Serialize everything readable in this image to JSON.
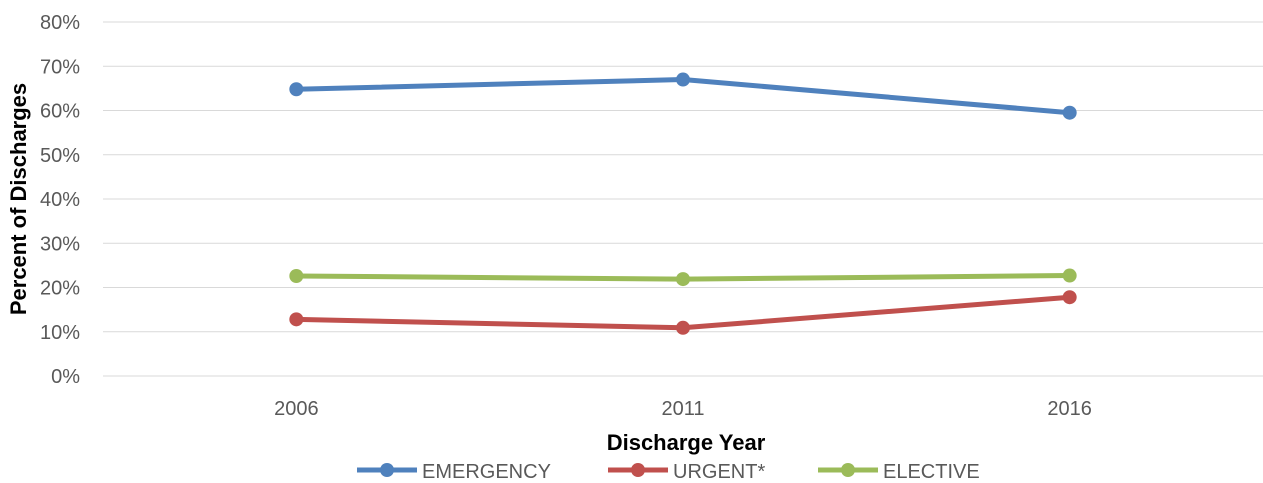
{
  "chart_data": {
    "type": "line",
    "categories": [
      "2006",
      "2011",
      "2016"
    ],
    "series": [
      {
        "name": "EMERGENCY",
        "values": [
          64.8,
          67.0,
          59.5
        ],
        "color": "#4f81bd"
      },
      {
        "name": "URGENT*",
        "values": [
          12.8,
          10.9,
          17.8
        ],
        "color": "#c0504d"
      },
      {
        "name": "ELECTIVE",
        "values": [
          22.6,
          21.9,
          22.7
        ],
        "color": "#9bbb59"
      }
    ],
    "y_ticks": [
      "0%",
      "10%",
      "20%",
      "30%",
      "40%",
      "50%",
      "60%",
      "70%",
      "80%"
    ],
    "ylim": [
      0,
      80
    ],
    "xlabel": "Discharge Year",
    "ylabel": "Percent of Discharges",
    "grid": true,
    "legend_position": "bottom"
  }
}
